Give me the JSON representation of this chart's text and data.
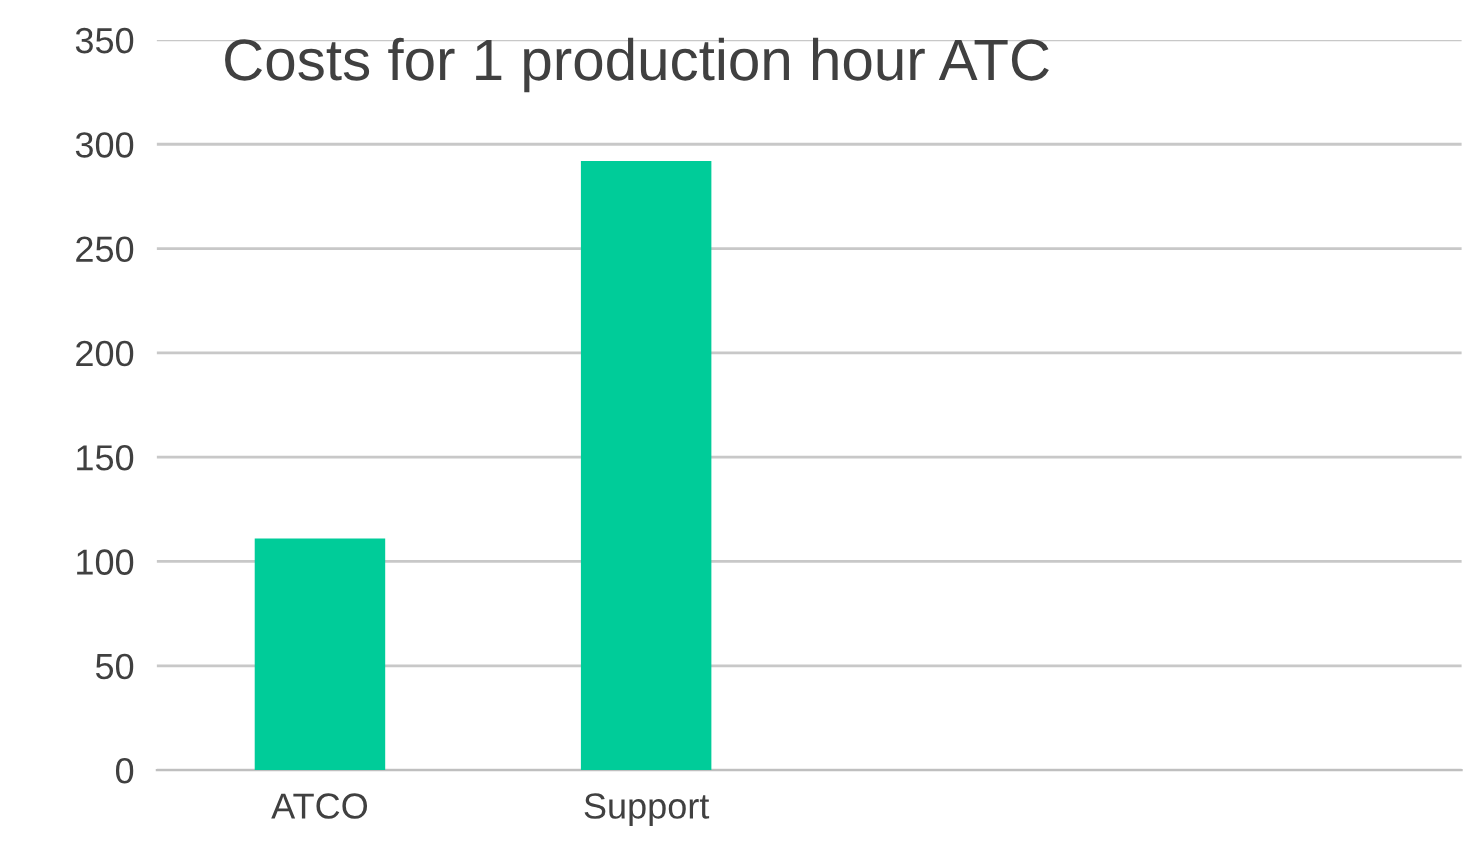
{
  "chart_data": {
    "type": "bar",
    "title": "Costs for 1 production hour ATC",
    "categories": [
      "ATCO",
      "Support",
      null,
      null
    ],
    "values": [
      111,
      292,
      null,
      null
    ],
    "color": "#00cc99",
    "ylim": [
      0,
      350
    ],
    "yticks": [
      0,
      50,
      100,
      150,
      200,
      250,
      300,
      350
    ],
    "grid": "y"
  }
}
